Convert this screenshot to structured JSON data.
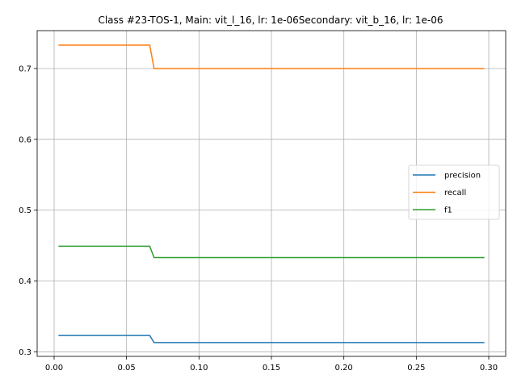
{
  "chart_data": {
    "type": "line",
    "title": "Class #23-TOS-1, Main: vit_l_16, lr: 1e-06Secondary: vit_b_16, lr: 1e-06",
    "xlabel": "",
    "ylabel": "",
    "xlim": [
      -0.0117,
      0.3117
    ],
    "ylim": [
      0.2935,
      0.7535
    ],
    "xticks": [
      0.0,
      0.05,
      0.1,
      0.15,
      0.2,
      0.25,
      0.3
    ],
    "xtick_labels": [
      "0.00",
      "0.05",
      "0.10",
      "0.15",
      "0.20",
      "0.25",
      "0.30"
    ],
    "yticks": [
      0.3,
      0.4,
      0.5,
      0.6,
      0.7
    ],
    "ytick_labels": [
      "0.3",
      "0.4",
      "0.5",
      "0.6",
      "0.7"
    ],
    "grid": true,
    "legend_position": "center-right",
    "x": [
      0.003,
      0.066,
      0.069,
      0.297
    ],
    "series": [
      {
        "name": "precision",
        "color": "#1f77b4",
        "values": [
          0.323,
          0.323,
          0.313,
          0.313
        ]
      },
      {
        "name": "recall",
        "color": "#ff7f0e",
        "values": [
          0.733,
          0.733,
          0.7,
          0.7
        ]
      },
      {
        "name": "f1",
        "color": "#2ca02c",
        "values": [
          0.449,
          0.449,
          0.433,
          0.433
        ]
      }
    ]
  }
}
